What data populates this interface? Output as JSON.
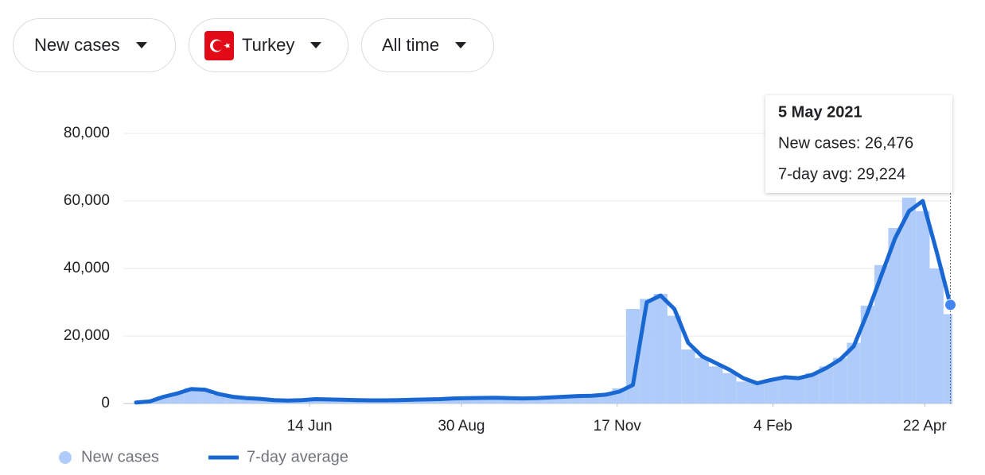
{
  "controls": [
    "New cases",
    "Turkey",
    "All time"
  ],
  "chart_data": {
    "type": "combo",
    "x": [
      7,
      14,
      21,
      28,
      35,
      42,
      49,
      56,
      63,
      70,
      77,
      84,
      91,
      98,
      105,
      112,
      119,
      126,
      133,
      140,
      147,
      154,
      161,
      168,
      175,
      182,
      189,
      196,
      203,
      210,
      217,
      224,
      231,
      238,
      245,
      252,
      259,
      266,
      273,
      280,
      287,
      294,
      301,
      308,
      315,
      322,
      329,
      336,
      343,
      350,
      357,
      364,
      371,
      378,
      385,
      392,
      399,
      406,
      413,
      420
    ],
    "series": [
      {
        "name": "New cases",
        "kind": "bar",
        "color": "#aecbfa",
        "values": [
          300,
          700,
          2200,
          3200,
          4600,
          3900,
          2600,
          1900,
          1500,
          1300,
          950,
          870,
          1050,
          1400,
          1150,
          1050,
          980,
          900,
          1000,
          1050,
          1150,
          1250,
          1350,
          1550,
          1650,
          1700,
          1750,
          1550,
          1480,
          1650,
          1850,
          2050,
          2250,
          2400,
          2800,
          4500,
          28000,
          31000,
          32500,
          26000,
          16000,
          13500,
          11000,
          9000,
          6500,
          6000,
          7200,
          8000,
          7300,
          9000,
          11000,
          13500,
          18000,
          29000,
          41000,
          52000,
          61000,
          57000,
          40000,
          26476
        ]
      },
      {
        "name": "7-day average",
        "kind": "line",
        "color": "#1967d2",
        "values": [
          300,
          600,
          2000,
          3000,
          4300,
          4100,
          2800,
          2000,
          1600,
          1400,
          1000,
          900,
          1000,
          1300,
          1200,
          1100,
          1000,
          950,
          950,
          1000,
          1100,
          1200,
          1300,
          1500,
          1600,
          1650,
          1700,
          1600,
          1500,
          1600,
          1800,
          2000,
          2200,
          2300,
          2600,
          3500,
          5500,
          30000,
          32000,
          28000,
          18000,
          14000,
          12000,
          10000,
          7500,
          6000,
          7000,
          7800,
          7500,
          8500,
          10500,
          13000,
          17000,
          27000,
          38000,
          49000,
          57000,
          60000,
          45000,
          29224
        ]
      }
    ],
    "xlim": [
      7,
      421
    ],
    "xticks": [
      {
        "value": 95,
        "label": "14 Jun"
      },
      {
        "value": 172,
        "label": "30 Aug"
      },
      {
        "value": 251,
        "label": "17 Nov"
      },
      {
        "value": 330,
        "label": "4 Feb"
      },
      {
        "value": 407,
        "label": "22 Apr"
      }
    ],
    "ylim": [
      0,
      80000
    ],
    "yticks": [
      0,
      {
        "value": 20000,
        "label": "20,000"
      },
      {
        "value": 40000,
        "label": "40,000"
      },
      {
        "value": 60000,
        "label": "60,000"
      },
      {
        "value": 80000,
        "label": "80,000"
      }
    ],
    "grid": true,
    "tooltip": {
      "title": "5 May 2021",
      "lines": [
        "New cases: 26,476",
        "7-day avg: 29,224"
      ]
    }
  }
}
